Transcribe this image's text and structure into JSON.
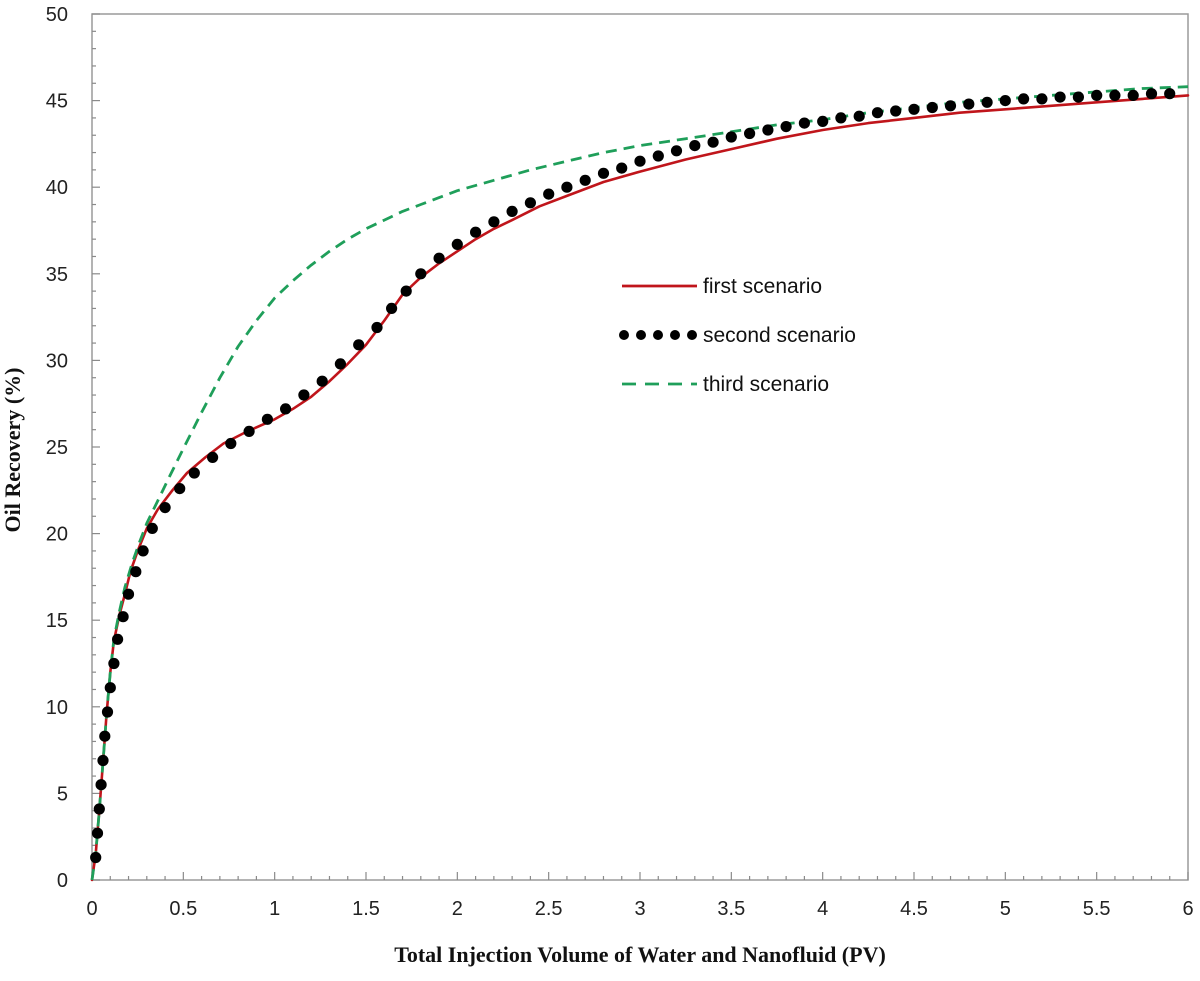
{
  "chart_data": {
    "type": "line",
    "xlabel": "Total Injection Volume of Water and Nanofluid  (PV)",
    "ylabel": "Oil Recovery (%)",
    "xlim": [
      0,
      6
    ],
    "ylim": [
      0,
      50
    ],
    "x_ticks": [
      "0",
      "0.5",
      "1",
      "1.5",
      "2",
      "2.5",
      "3",
      "3.5",
      "4",
      "4.5",
      "5",
      "5.5",
      "6"
    ],
    "y_ticks": [
      "0",
      "5",
      "10",
      "15",
      "20",
      "25",
      "30",
      "35",
      "40",
      "45",
      "50"
    ],
    "grid": false,
    "legend_position": "center-right",
    "series": [
      {
        "name": "first scenario",
        "style": "solid",
        "color": "#c0151b",
        "x": [
          0,
          0.02,
          0.04,
          0.06,
          0.08,
          0.1,
          0.12,
          0.15,
          0.18,
          0.21,
          0.25,
          0.3,
          0.36,
          0.44,
          0.52,
          0.62,
          0.72,
          0.85,
          1.0,
          1.1,
          1.2,
          1.3,
          1.4,
          1.5,
          1.6,
          1.7,
          1.8,
          1.9,
          2.0,
          2.1,
          2.2,
          2.3,
          2.45,
          2.6,
          2.8,
          3.0,
          3.25,
          3.5,
          3.75,
          4.0,
          4.25,
          4.5,
          4.75,
          5.0,
          5.25,
          5.5,
          5.75,
          6.0
        ],
        "y": [
          0,
          1.5,
          4.0,
          6.8,
          9.6,
          12.0,
          13.8,
          15.3,
          16.5,
          17.8,
          19.0,
          20.3,
          21.4,
          22.5,
          23.5,
          24.4,
          25.2,
          25.9,
          26.6,
          27.2,
          27.9,
          28.8,
          29.8,
          30.9,
          32.3,
          33.8,
          34.8,
          35.6,
          36.3,
          37.0,
          37.6,
          38.1,
          38.9,
          39.5,
          40.3,
          40.9,
          41.6,
          42.2,
          42.8,
          43.3,
          43.7,
          44.0,
          44.3,
          44.5,
          44.7,
          44.9,
          45.1,
          45.3
        ]
      },
      {
        "name": "second scenario",
        "style": "dotted",
        "color": "#000000",
        "x": [
          0.02,
          0.03,
          0.04,
          0.05,
          0.06,
          0.07,
          0.085,
          0.1,
          0.12,
          0.14,
          0.17,
          0.2,
          0.24,
          0.28,
          0.33,
          0.4,
          0.48,
          0.56,
          0.66,
          0.76,
          0.86,
          0.96,
          1.06,
          1.16,
          1.26,
          1.36,
          1.46,
          1.56,
          1.64,
          1.72,
          1.8,
          1.9,
          2.0,
          2.1,
          2.2,
          2.3,
          2.4,
          2.5,
          2.6,
          2.7,
          2.8,
          2.9,
          3.0,
          3.1,
          3.2,
          3.3,
          3.4,
          3.5,
          3.6,
          3.7,
          3.8,
          3.9,
          4.0,
          4.1,
          4.2,
          4.3,
          4.4,
          4.5,
          4.6,
          4.7,
          4.8,
          4.9,
          5.0,
          5.1,
          5.2,
          5.3,
          5.4,
          5.5,
          5.6,
          5.7,
          5.8,
          5.9
        ],
        "y": [
          1.3,
          2.7,
          4.1,
          5.5,
          6.9,
          8.3,
          9.7,
          11.1,
          12.5,
          13.9,
          15.2,
          16.5,
          17.8,
          19.0,
          20.3,
          21.5,
          22.6,
          23.5,
          24.4,
          25.2,
          25.9,
          26.6,
          27.2,
          28.0,
          28.8,
          29.8,
          30.9,
          31.9,
          33.0,
          34.0,
          35.0,
          35.9,
          36.7,
          37.4,
          38.0,
          38.6,
          39.1,
          39.6,
          40.0,
          40.4,
          40.8,
          41.1,
          41.5,
          41.8,
          42.1,
          42.4,
          42.6,
          42.9,
          43.1,
          43.3,
          43.5,
          43.7,
          43.8,
          44.0,
          44.1,
          44.3,
          44.4,
          44.5,
          44.6,
          44.7,
          44.8,
          44.9,
          45.0,
          45.1,
          45.1,
          45.2,
          45.2,
          45.3,
          45.3,
          45.3,
          45.4,
          45.4
        ]
      },
      {
        "name": "third scenario",
        "style": "dashed",
        "color": "#1f9f5a",
        "x": [
          0,
          0.02,
          0.04,
          0.06,
          0.08,
          0.1,
          0.12,
          0.15,
          0.18,
          0.22,
          0.26,
          0.3,
          0.36,
          0.42,
          0.5,
          0.6,
          0.7,
          0.8,
          0.9,
          1.0,
          1.1,
          1.2,
          1.3,
          1.4,
          1.5,
          1.6,
          1.7,
          1.8,
          1.9,
          2.0,
          2.2,
          2.4,
          2.6,
          2.8,
          3.0,
          3.25,
          3.5,
          3.75,
          4.0,
          4.25,
          4.5,
          4.75,
          5.0,
          5.25,
          5.5,
          5.75,
          6.0
        ],
        "y": [
          0,
          1.5,
          4.0,
          6.8,
          9.6,
          12.0,
          13.9,
          15.5,
          16.9,
          18.3,
          19.5,
          20.6,
          21.9,
          23.2,
          24.9,
          27.0,
          29.0,
          30.8,
          32.3,
          33.6,
          34.6,
          35.5,
          36.3,
          37.0,
          37.6,
          38.1,
          38.6,
          39.0,
          39.4,
          39.8,
          40.4,
          41.0,
          41.5,
          42.0,
          42.4,
          42.8,
          43.2,
          43.6,
          43.9,
          44.3,
          44.6,
          44.9,
          45.1,
          45.3,
          45.5,
          45.7,
          45.8
        ]
      }
    ]
  }
}
